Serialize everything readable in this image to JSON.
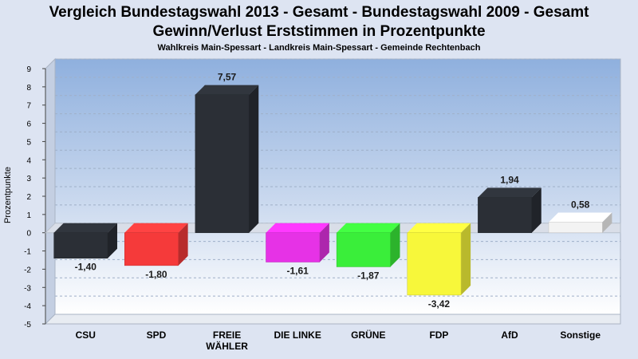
{
  "header": {
    "title_line1": "Vergleich Bundestagswahl 2013 - Gesamt - Bundestagswahl 2009 - Gesamt",
    "title_line2": "Gewinn/Verlust Erststimmen in Prozentpunkte",
    "subtitle": "Wahlkreis Main-Spessart - Landkreis Main-Spessart - Gemeinde Rechtenbach"
  },
  "chart_data": {
    "type": "bar",
    "title": "Vergleich Bundestagswahl 2013 - Gesamt - Bundestagswahl 2009 - Gesamt / Gewinn/Verlust Erststimmen in Prozentpunkte",
    "subtitle": "Wahlkreis Main-Spessart - Landkreis Main-Spessart - Gemeinde Rechtenbach",
    "ylabel": "Prozentpunkte",
    "xlabel": "",
    "ylim": [
      -5,
      9
    ],
    "yticks": [
      -5,
      -4,
      -3,
      -2,
      -1,
      0,
      1,
      2,
      3,
      4,
      5,
      6,
      7,
      8,
      9
    ],
    "grid": true,
    "categories": [
      "CSU",
      "SPD",
      "FREIE WÄHLER",
      "DIE LINKE",
      "GRÜNE",
      "FDP",
      "AfD",
      "Sonstige"
    ],
    "category_lines": [
      [
        "CSU"
      ],
      [
        "SPD"
      ],
      [
        "FREIE",
        "WÄHLER"
      ],
      [
        "DIE LINKE"
      ],
      [
        "GRÜNE"
      ],
      [
        "FDP"
      ],
      [
        "AfD"
      ],
      [
        "Sonstige"
      ]
    ],
    "values": [
      -1.4,
      -1.8,
      7.57,
      -1.61,
      -1.87,
      -3.42,
      1.94,
      0.58
    ],
    "value_labels": [
      "-1,40",
      "-1,80",
      "7,57",
      "-1,61",
      "-1,87",
      "-3,42",
      "1,94",
      "0,58"
    ],
    "colors": [
      "#2b2f36",
      "#f53a3a",
      "#2b2f36",
      "#e632e6",
      "#3aee3a",
      "#f7f73a",
      "#2b2f36",
      "#f3f3f3"
    ]
  }
}
